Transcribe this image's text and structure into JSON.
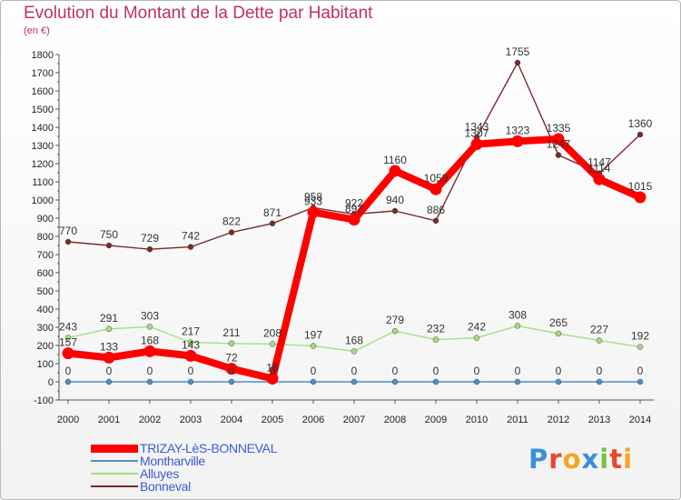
{
  "title": "Evolution du Montant de la Dette par Habitant",
  "subtitle": "(en €)",
  "logo": {
    "text": "Proxiti",
    "letter_colors": [
      "#3b8fd9",
      "#e8482c",
      "#f5a623",
      "#3b8fd9",
      "#7ac143",
      "#e8482c",
      "#f5a623"
    ]
  },
  "chart_data": {
    "type": "line",
    "categories": [
      "2000",
      "2001",
      "2002",
      "2003",
      "2004",
      "2005",
      "2006",
      "2007",
      "2008",
      "2009",
      "2010",
      "2011",
      "2012",
      "2013",
      "2014"
    ],
    "ylim": [
      -100,
      1800
    ],
    "yticks": [
      -100,
      0,
      100,
      200,
      300,
      400,
      500,
      600,
      700,
      800,
      900,
      1000,
      1100,
      1200,
      1300,
      1400,
      1500,
      1600,
      1700,
      1800
    ],
    "grid": false,
    "legend_position": "bottom-left",
    "series": [
      {
        "name": "TRIZAY-LèS-BONNEVAL",
        "color": "#ff0000",
        "emphasis": true,
        "values": [
          157,
          133,
          168,
          143,
          72,
          18,
          933,
          892,
          1160,
          1059,
          1307,
          1323,
          1335,
          1114,
          1015
        ]
      },
      {
        "name": "Montharville",
        "color": "#4e8ec9",
        "emphasis": false,
        "values": [
          0,
          0,
          0,
          0,
          0,
          0,
          0,
          0,
          0,
          0,
          0,
          0,
          0,
          0,
          0
        ]
      },
      {
        "name": "Alluyes",
        "color": "#a8dc84",
        "emphasis": false,
        "values": [
          243,
          291,
          303,
          217,
          211,
          208,
          197,
          168,
          279,
          232,
          242,
          308,
          265,
          227,
          192
        ]
      },
      {
        "name": "Bonneval",
        "color": "#7a2a2a",
        "emphasis": false,
        "values": [
          770,
          750,
          729,
          742,
          822,
          871,
          958,
          922,
          940,
          886,
          1343,
          1755,
          1247,
          1147,
          1360
        ]
      }
    ]
  }
}
